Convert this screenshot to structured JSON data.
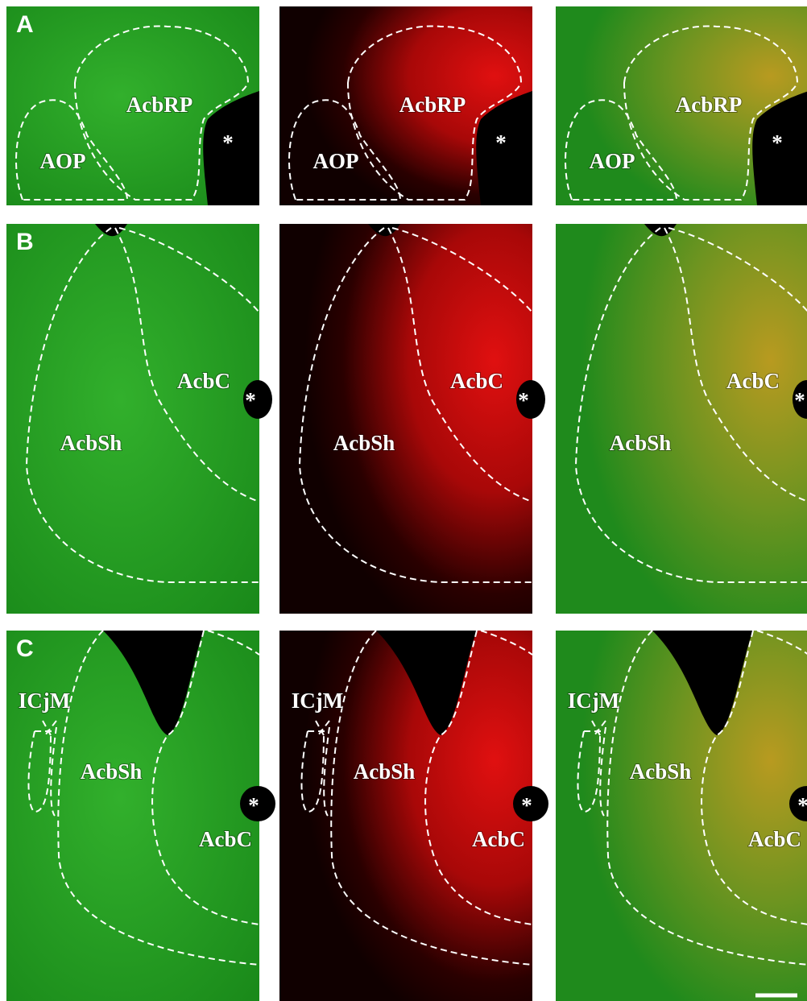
{
  "rows": [
    {
      "letter": "A",
      "regions": [
        "AcbRP",
        "AOP"
      ],
      "marker": "*"
    },
    {
      "letter": "B",
      "regions": [
        "AcbC",
        "AcbSh"
      ],
      "marker": "*"
    },
    {
      "letter": "C",
      "regions": [
        "ICjM",
        "AcbSh",
        "AcbC"
      ],
      "marker": "*"
    }
  ]
}
